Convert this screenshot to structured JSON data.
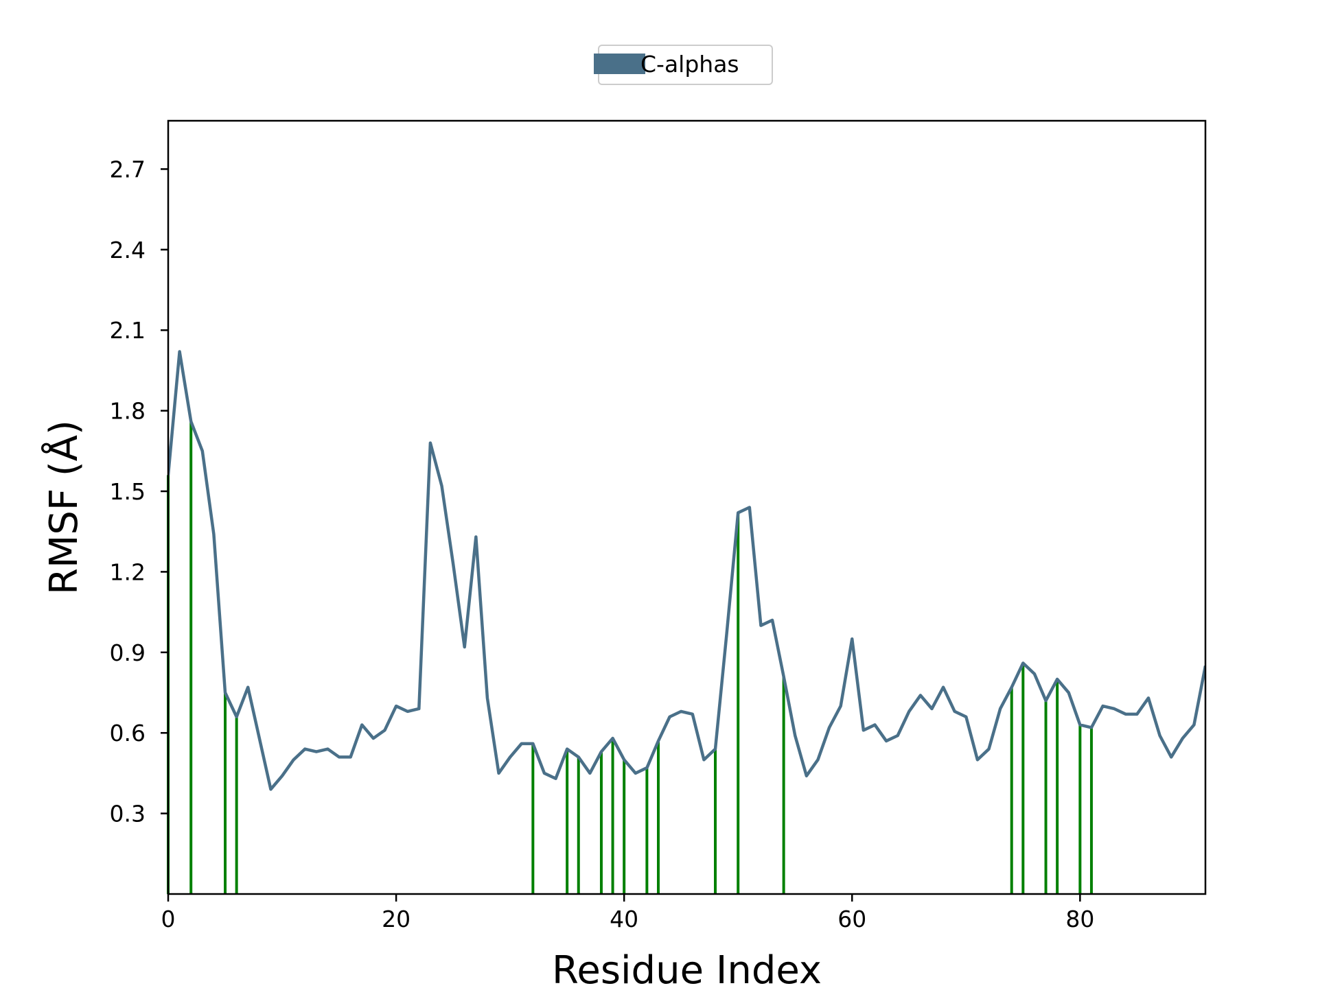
{
  "chart_data": {
    "type": "line",
    "title": "",
    "xlabel": "Residue Index",
    "ylabel": "RMSF (Å)",
    "xlim": [
      0,
      91
    ],
    "ylim": [
      0.0,
      2.88
    ],
    "xticks": [
      0,
      20,
      40,
      60,
      80
    ],
    "yticks": [
      0.3,
      0.6,
      0.9,
      1.2,
      1.5,
      1.8,
      2.1,
      2.4,
      2.7
    ],
    "grid": false,
    "legend_position": "top-center",
    "series": [
      {
        "name": "C-alphas",
        "color": "#4a7089",
        "x": [
          0,
          1,
          2,
          3,
          4,
          5,
          6,
          7,
          8,
          9,
          10,
          11,
          12,
          13,
          14,
          15,
          16,
          17,
          18,
          19,
          20,
          21,
          22,
          23,
          24,
          25,
          26,
          27,
          28,
          29,
          30,
          31,
          32,
          33,
          34,
          35,
          36,
          37,
          38,
          39,
          40,
          41,
          42,
          43,
          44,
          45,
          46,
          47,
          48,
          49,
          50,
          51,
          52,
          53,
          54,
          55,
          56,
          57,
          58,
          59,
          60,
          61,
          62,
          63,
          64,
          65,
          66,
          67,
          68,
          69,
          70,
          71,
          72,
          73,
          74,
          75,
          76,
          77,
          78,
          79,
          80,
          81,
          82,
          83,
          84,
          85,
          86,
          87,
          88,
          89,
          90,
          91
        ],
        "values": [
          1.56,
          2.02,
          1.76,
          1.65,
          1.34,
          0.75,
          0.66,
          0.77,
          0.58,
          0.39,
          0.44,
          0.5,
          0.54,
          0.53,
          0.54,
          0.51,
          0.51,
          0.63,
          0.58,
          0.61,
          0.7,
          0.68,
          0.69,
          1.68,
          1.52,
          1.23,
          0.92,
          1.33,
          0.73,
          0.45,
          0.51,
          0.56,
          0.56,
          0.45,
          0.43,
          0.54,
          0.51,
          0.45,
          0.53,
          0.58,
          0.5,
          0.45,
          0.47,
          0.57,
          0.66,
          0.68,
          0.67,
          0.5,
          0.54,
          0.97,
          1.42,
          1.44,
          1.0,
          1.02,
          0.81,
          0.59,
          0.44,
          0.5,
          0.62,
          0.7,
          0.95,
          0.61,
          0.63,
          0.57,
          0.59,
          0.68,
          0.74,
          0.69,
          0.77,
          0.68,
          0.66,
          0.5,
          0.54,
          0.69,
          0.77,
          0.86,
          0.82,
          0.72,
          0.8,
          0.75,
          0.63,
          0.62,
          0.7,
          0.69,
          0.67,
          0.67,
          0.73,
          0.59,
          0.51,
          0.58,
          0.63,
          0.85
        ]
      }
    ],
    "highlights": {
      "color": "#008000",
      "indices": [
        0,
        2,
        5,
        6,
        32,
        35,
        36,
        38,
        39,
        40,
        42,
        43,
        48,
        50,
        54,
        74,
        75,
        77,
        78,
        80,
        81
      ]
    }
  }
}
